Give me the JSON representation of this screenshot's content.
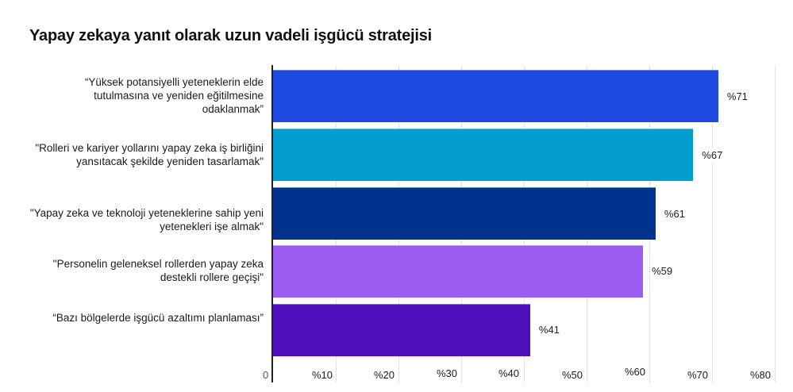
{
  "chart_data": {
    "type": "bar",
    "orientation": "horizontal",
    "title": "Yapay zekaya yanıt olarak uzun vadeli işgücü stratejisi",
    "xlabel": "",
    "ylabel": "",
    "xlim": [
      0,
      80
    ],
    "grid": true,
    "legend": "none",
    "categories": [
      "“Yüksek potansiyelli yeteneklerin elde tutulmasına ve yeniden eğitilmesine odaklanmak”",
      "\"Rolleri ve kariyer yollarını yapay zeka iş birliğini yansıtacak şekilde yeniden tasarlamak\"",
      "\"Yapay zeka ve teknoloji yeteneklerine sahip yeni yetenekleri işe almak\"",
      "\"Personelin geleneksel rollerden yapay zeka destekli rollere geçişi\"",
      "“Bazı bölgelerde işgücü azaltımı planlaması”"
    ],
    "values": [
      71,
      67,
      61,
      59,
      41
    ],
    "value_labels": [
      "%71",
      "%67",
      "%61",
      "%59",
      "%41"
    ],
    "colors": [
      "#1f4ae0",
      "#049dd0",
      "#00338d",
      "#9b5cef",
      "#4f0fbb"
    ],
    "x_ticks": [
      "0",
      "%10",
      "%20",
      "%30",
      "%40",
      "%50",
      "%60",
      "%70",
      "%80"
    ]
  },
  "title": "Yapay zekaya yanıt olarak uzun vadeli işgücü stratejisi",
  "labels": {
    "cat0_l1": "“Yüksek potansiyelli yeteneklerin elde",
    "cat0_l2": "tutulmasına ve yeniden eğitilmesine",
    "cat0_l3": "odaklanmak”",
    "cat1_l1": "\"Rolleri ve kariyer yollarını yapay zeka iş birliğini",
    "cat1_l2": "yansıtacak şekilde yeniden tasarlamak\"",
    "cat2_l1": "\"Yapay zeka ve teknoloji yeteneklerine sahip yeni",
    "cat2_l2": "yetenekleri işe almak\"",
    "cat3_l1": "\"Personelin geleneksel rollerden yapay zeka",
    "cat3_l2": "destekli rollere geçişi\"",
    "cat4_l1": "“Bazı bölgelerde işgücü azaltımı planlaması”"
  }
}
